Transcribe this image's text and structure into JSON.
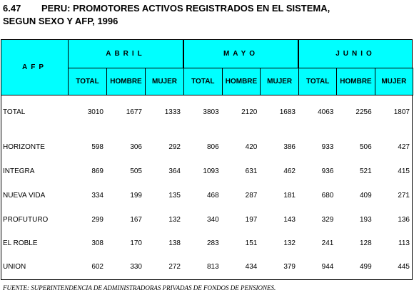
{
  "header": {
    "number": "6.47",
    "title_line1": "PERU: PROMOTORES ACTIVOS REGISTRADOS EN EL SISTEMA,",
    "title_line2": "SEGUN SEXO Y AFP, 1996"
  },
  "table": {
    "afp_label": "AFP",
    "groups": [
      "ABRIL",
      "MAYO",
      "JUNIO"
    ],
    "subheaders": [
      "TOTAL",
      "HOMBRE",
      "MUJER"
    ],
    "rows": [
      {
        "name": "TOTAL",
        "values": [
          3010,
          1677,
          1333,
          3803,
          2120,
          1683,
          4063,
          2256,
          1807
        ]
      },
      {
        "name": "HORIZONTE",
        "values": [
          598,
          306,
          292,
          806,
          420,
          386,
          933,
          506,
          427
        ]
      },
      {
        "name": "INTEGRA",
        "values": [
          869,
          505,
          364,
          1093,
          631,
          462,
          936,
          521,
          415
        ]
      },
      {
        "name": "NUEVA VIDA",
        "values": [
          334,
          199,
          135,
          468,
          287,
          181,
          680,
          409,
          271
        ]
      },
      {
        "name": "PROFUTURO",
        "values": [
          299,
          167,
          132,
          340,
          197,
          143,
          329,
          193,
          136
        ]
      },
      {
        "name": "EL ROBLE",
        "values": [
          308,
          170,
          138,
          283,
          151,
          132,
          241,
          128,
          113
        ]
      },
      {
        "name": "UNION",
        "values": [
          602,
          330,
          272,
          813,
          434,
          379,
          944,
          499,
          445
        ]
      }
    ]
  },
  "footer": {
    "source": "FUENTE: SUPERINTENDENCIA DE ADMINISTRADORAS PRIVADAS DE FONDOS DE PENSIONES."
  }
}
